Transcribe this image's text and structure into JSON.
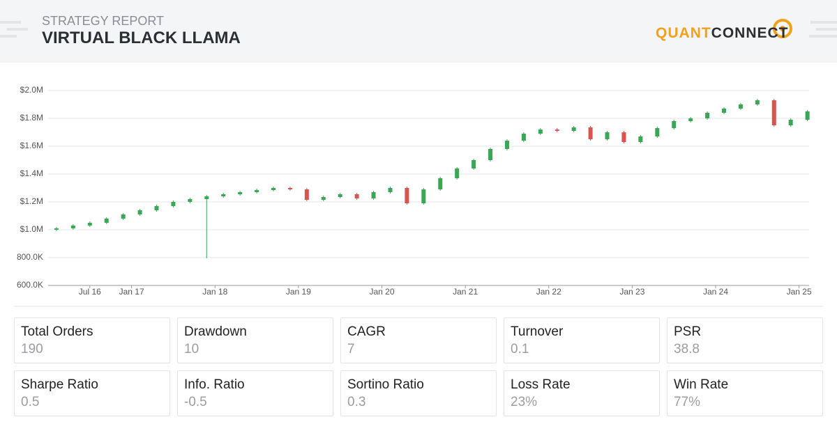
{
  "header": {
    "subtitle": "STRATEGY REPORT",
    "title": "VIRTUAL BLACK LLAMA",
    "logo": [
      "QUANT",
      "CONNECT"
    ]
  },
  "chart_data": {
    "type": "candlestick",
    "x": [
      2016.1,
      2016.3,
      2016.5,
      2016.7,
      2016.9,
      2017.1,
      2017.3,
      2017.5,
      2017.7,
      2017.9,
      2018.1,
      2018.3,
      2018.5,
      2018.7,
      2018.9,
      2019.1,
      2019.3,
      2019.5,
      2019.7,
      2019.9,
      2020.1,
      2020.3,
      2020.5,
      2020.7,
      2020.9,
      2021.1,
      2021.3,
      2021.5,
      2021.7,
      2021.9,
      2022.1,
      2022.3,
      2022.5,
      2022.7,
      2022.9,
      2023.1,
      2023.3,
      2023.5,
      2023.7,
      2023.9,
      2024.1,
      2024.3,
      2024.5,
      2024.7,
      2024.9,
      2025.1
    ],
    "open": [
      1000000,
      1010000,
      1030000,
      1050000,
      1080000,
      1110000,
      1140000,
      1170000,
      1200000,
      1220000,
      1240000,
      1255000,
      1270000,
      1285000,
      1300000,
      1290000,
      1215000,
      1235000,
      1255000,
      1225000,
      1270000,
      1300000,
      1190000,
      1290000,
      1370000,
      1440000,
      1500000,
      1580000,
      1640000,
      1690000,
      1720000,
      1710000,
      1735000,
      1650000,
      1700000,
      1630000,
      1670000,
      1730000,
      1780000,
      1800000,
      1840000,
      1870000,
      1900000,
      1930000,
      1750000,
      1790000
    ],
    "high": [
      1020000,
      1040000,
      1060000,
      1090000,
      1120000,
      1150000,
      1180000,
      1210000,
      1230000,
      1250000,
      1265000,
      1280000,
      1295000,
      1310000,
      1310000,
      1300000,
      1245000,
      1265000,
      1265000,
      1280000,
      1310000,
      1310000,
      1300000,
      1380000,
      1450000,
      1510000,
      1590000,
      1650000,
      1700000,
      1730000,
      1730000,
      1745000,
      1745000,
      1710000,
      1710000,
      1680000,
      1740000,
      1790000,
      1810000,
      1850000,
      1880000,
      1910000,
      1940000,
      1940000,
      1800000,
      1860000
    ],
    "low": [
      990000,
      1000000,
      1020000,
      1040000,
      1070000,
      1100000,
      1130000,
      1160000,
      1190000,
      795000,
      1230000,
      1245000,
      1260000,
      1275000,
      1280000,
      1205000,
      1205000,
      1225000,
      1215000,
      1215000,
      1260000,
      1180000,
      1180000,
      1280000,
      1360000,
      1430000,
      1490000,
      1570000,
      1630000,
      1680000,
      1700000,
      1700000,
      1640000,
      1640000,
      1620000,
      1620000,
      1660000,
      1720000,
      1770000,
      1790000,
      1830000,
      1860000,
      1890000,
      1740000,
      1740000,
      1780000
    ],
    "close": [
      1010000,
      1030000,
      1050000,
      1080000,
      1110000,
      1140000,
      1170000,
      1200000,
      1220000,
      1240000,
      1255000,
      1270000,
      1285000,
      1300000,
      1290000,
      1215000,
      1235000,
      1255000,
      1225000,
      1270000,
      1300000,
      1190000,
      1290000,
      1370000,
      1440000,
      1500000,
      1580000,
      1640000,
      1690000,
      1720000,
      1710000,
      1735000,
      1650000,
      1700000,
      1630000,
      1670000,
      1730000,
      1780000,
      1800000,
      1840000,
      1870000,
      1900000,
      1930000,
      1750000,
      1790000,
      1850000
    ],
    "up_color": "#3aa757",
    "down_color": "#d9534f",
    "xlim": [
      2016.0,
      2025.12
    ],
    "xticks": [
      {
        "value": 2016.5,
        "label": "Jul 16"
      },
      {
        "value": 2017,
        "label": "Jan 17"
      },
      {
        "value": 2018,
        "label": "Jan 18"
      },
      {
        "value": 2019,
        "label": "Jan 19"
      },
      {
        "value": 2020,
        "label": "Jan 20"
      },
      {
        "value": 2021,
        "label": "Jan 21"
      },
      {
        "value": 2022,
        "label": "Jan 22"
      },
      {
        "value": 2023,
        "label": "Jan 23"
      },
      {
        "value": 2024,
        "label": "Jan 24"
      },
      {
        "value": 2025,
        "label": "Jan 25"
      }
    ],
    "ylim": [
      600000,
      2000000
    ],
    "yticks": [
      {
        "value": 600000,
        "label": "600.0K"
      },
      {
        "value": 800000,
        "label": "800.0K"
      },
      {
        "value": 1000000,
        "label": "$1.0M"
      },
      {
        "value": 1200000,
        "label": "$1.2M"
      },
      {
        "value": 1400000,
        "label": "$1.4M"
      },
      {
        "value": 1600000,
        "label": "$1.6M"
      },
      {
        "value": 1800000,
        "label": "$1.8M"
      },
      {
        "value": 2000000,
        "label": "$2.0M"
      }
    ],
    "grid": true
  },
  "stats": [
    {
      "label": "Total Orders",
      "value": "190"
    },
    {
      "label": "Drawdown",
      "value": "10"
    },
    {
      "label": "CAGR",
      "value": "7"
    },
    {
      "label": "Turnover",
      "value": "0.1"
    },
    {
      "label": "PSR",
      "value": "38.8"
    },
    {
      "label": "Sharpe Ratio",
      "value": "0.5"
    },
    {
      "label": "Info. Ratio",
      "value": "-0.5"
    },
    {
      "label": "Sortino Ratio",
      "value": "0.3"
    },
    {
      "label": "Loss Rate",
      "value": "23%"
    },
    {
      "label": "Win Rate",
      "value": "77%"
    }
  ]
}
